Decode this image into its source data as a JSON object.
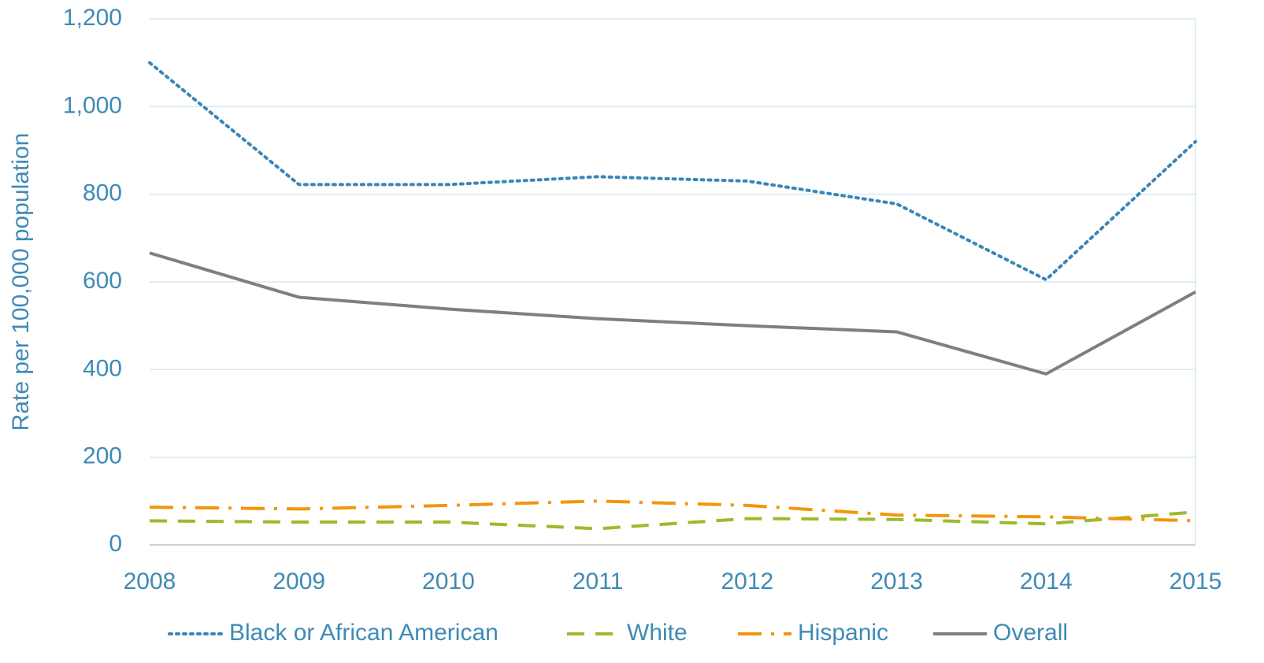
{
  "chart_data": {
    "type": "line",
    "y_label": "Rate per 100,000 population",
    "categories": [
      "2008",
      "2009",
      "2010",
      "2011",
      "2012",
      "2013",
      "2014",
      "2015"
    ],
    "series": [
      {
        "name": "Black or African American",
        "color": "#3a86b8",
        "dash": "dotted",
        "values": [
          1100,
          822,
          822,
          840,
          830,
          778,
          605,
          920
        ]
      },
      {
        "name": "White",
        "color": "#9bbb2c",
        "dash": "dashed",
        "values": [
          55,
          52,
          52,
          37,
          60,
          58,
          48,
          75
        ]
      },
      {
        "name": "Hispanic",
        "color": "#f2960c",
        "dash": "dashdot",
        "values": [
          86,
          82,
          90,
          100,
          90,
          68,
          64,
          55
        ]
      },
      {
        "name": "Overall",
        "color": "#7f7f7f",
        "dash": "solid",
        "values": [
          666,
          565,
          538,
          516,
          500,
          486,
          390,
          577
        ]
      }
    ],
    "ylim": [
      0,
      1200
    ],
    "yticks": [
      0,
      200,
      400,
      600,
      800,
      {
        "value": 1000,
        "label": "1,000"
      },
      {
        "value": 1200,
        "label": "1,200"
      }
    ],
    "grid": true,
    "legend": "bottom"
  }
}
